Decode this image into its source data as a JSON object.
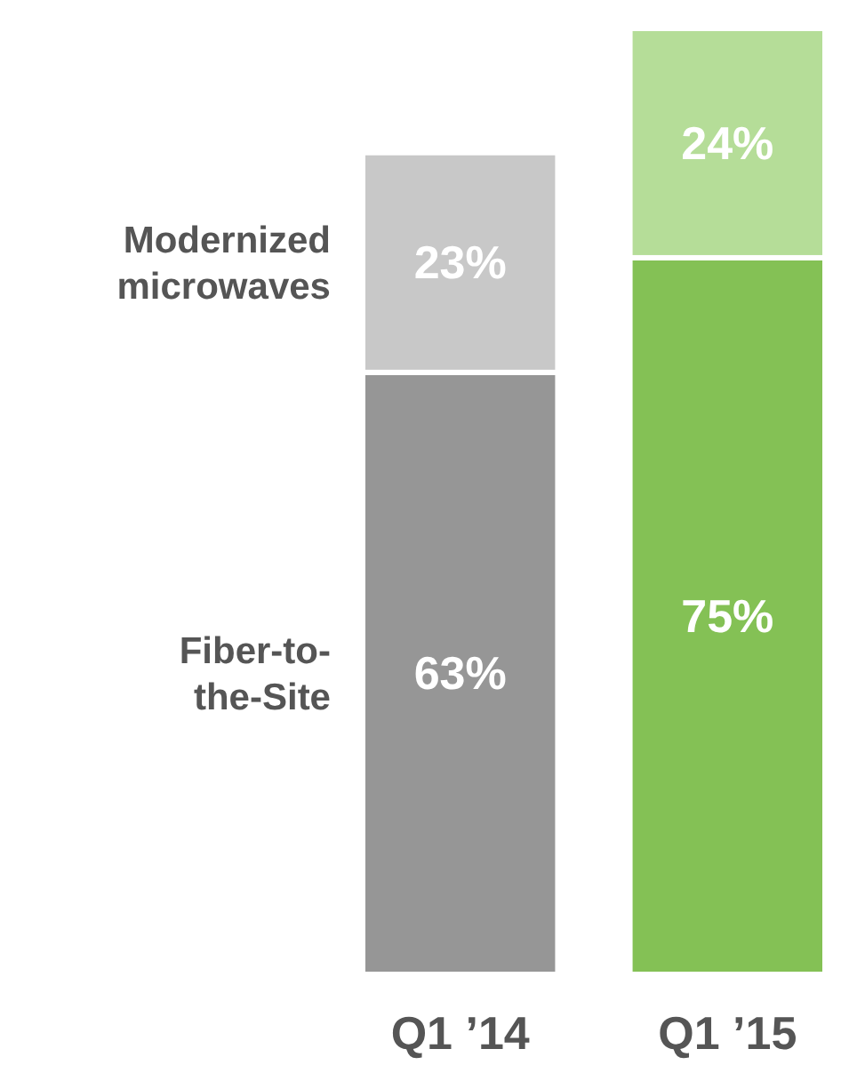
{
  "chart_data": {
    "type": "bar",
    "stacked": true,
    "categories": [
      "Q1 ’14",
      "Q1 ’15"
    ],
    "series": [
      {
        "name": "Fiber-to-the-Site",
        "colors": [
          "#969696",
          "#84c155"
        ],
        "values": [
          63,
          75
        ],
        "value_labels": [
          "63%",
          "75%"
        ]
      },
      {
        "name": "Modernized microwaves",
        "colors": [
          "#c8c8c8",
          "#b5dd98"
        ],
        "values": [
          23,
          24
        ],
        "value_labels": [
          "23%",
          "24%"
        ]
      }
    ]
  }
}
